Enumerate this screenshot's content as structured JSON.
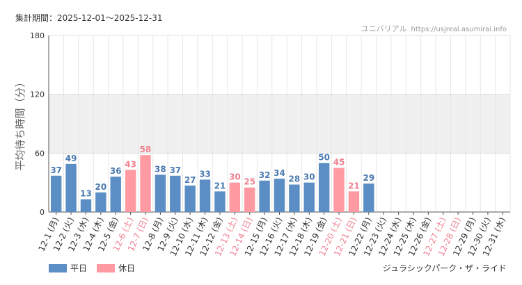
{
  "header": {
    "period": "集計期間：2025-12-01～2025-12-31",
    "brand_name": "ユニバリアル",
    "brand_url": "https://usjreal.asumirai.info"
  },
  "footer": {
    "attraction": "ジュラシックパーク・ザ・ライド"
  },
  "colors": {
    "weekday": "#5b8ec4",
    "holiday": "#ff9aa2",
    "holiday_label": "#f08090",
    "band": "#f0f0f0"
  },
  "chart_data": {
    "type": "bar",
    "title": "",
    "xlabel": "",
    "ylabel": "平均待ち時間（分）",
    "ylim": [
      0,
      180
    ],
    "yticks": [
      0,
      60,
      120,
      180
    ],
    "band_range": [
      60,
      120
    ],
    "legend": [
      {
        "name": "平日",
        "key": "weekday"
      },
      {
        "name": "休日",
        "key": "holiday"
      }
    ],
    "categories": [
      "12-1 (月)",
      "12-2 (火)",
      "12-3 (水)",
      "12-4 (木)",
      "12-5 (金)",
      "12-6 (土)",
      "12-7 (日)",
      "12-8 (月)",
      "12-9 (火)",
      "12-10 (水)",
      "12-11 (木)",
      "12-12 (金)",
      "12-13 (土)",
      "12-14 (日)",
      "12-15 (月)",
      "12-16 (火)",
      "12-17 (水)",
      "12-18 (木)",
      "12-19 (金)",
      "12-20 (土)",
      "12-21 (日)",
      "12-22 (月)",
      "12-23 (火)",
      "12-24 (水)",
      "12-25 (木)",
      "12-26 (金)",
      "12-27 (土)",
      "12-28 (日)",
      "12-29 (月)",
      "12-30 (火)",
      "12-31 (水)"
    ],
    "values": [
      37,
      49,
      13,
      20,
      36,
      43,
      58,
      38,
      37,
      27,
      33,
      21,
      30,
      25,
      32,
      34,
      28,
      30,
      50,
      45,
      21,
      29,
      null,
      null,
      null,
      null,
      null,
      null,
      null,
      null,
      null
    ],
    "holiday": [
      false,
      false,
      false,
      false,
      false,
      true,
      true,
      false,
      false,
      false,
      false,
      false,
      true,
      true,
      false,
      false,
      false,
      false,
      false,
      true,
      true,
      false,
      false,
      false,
      false,
      false,
      true,
      true,
      false,
      false,
      false
    ]
  }
}
